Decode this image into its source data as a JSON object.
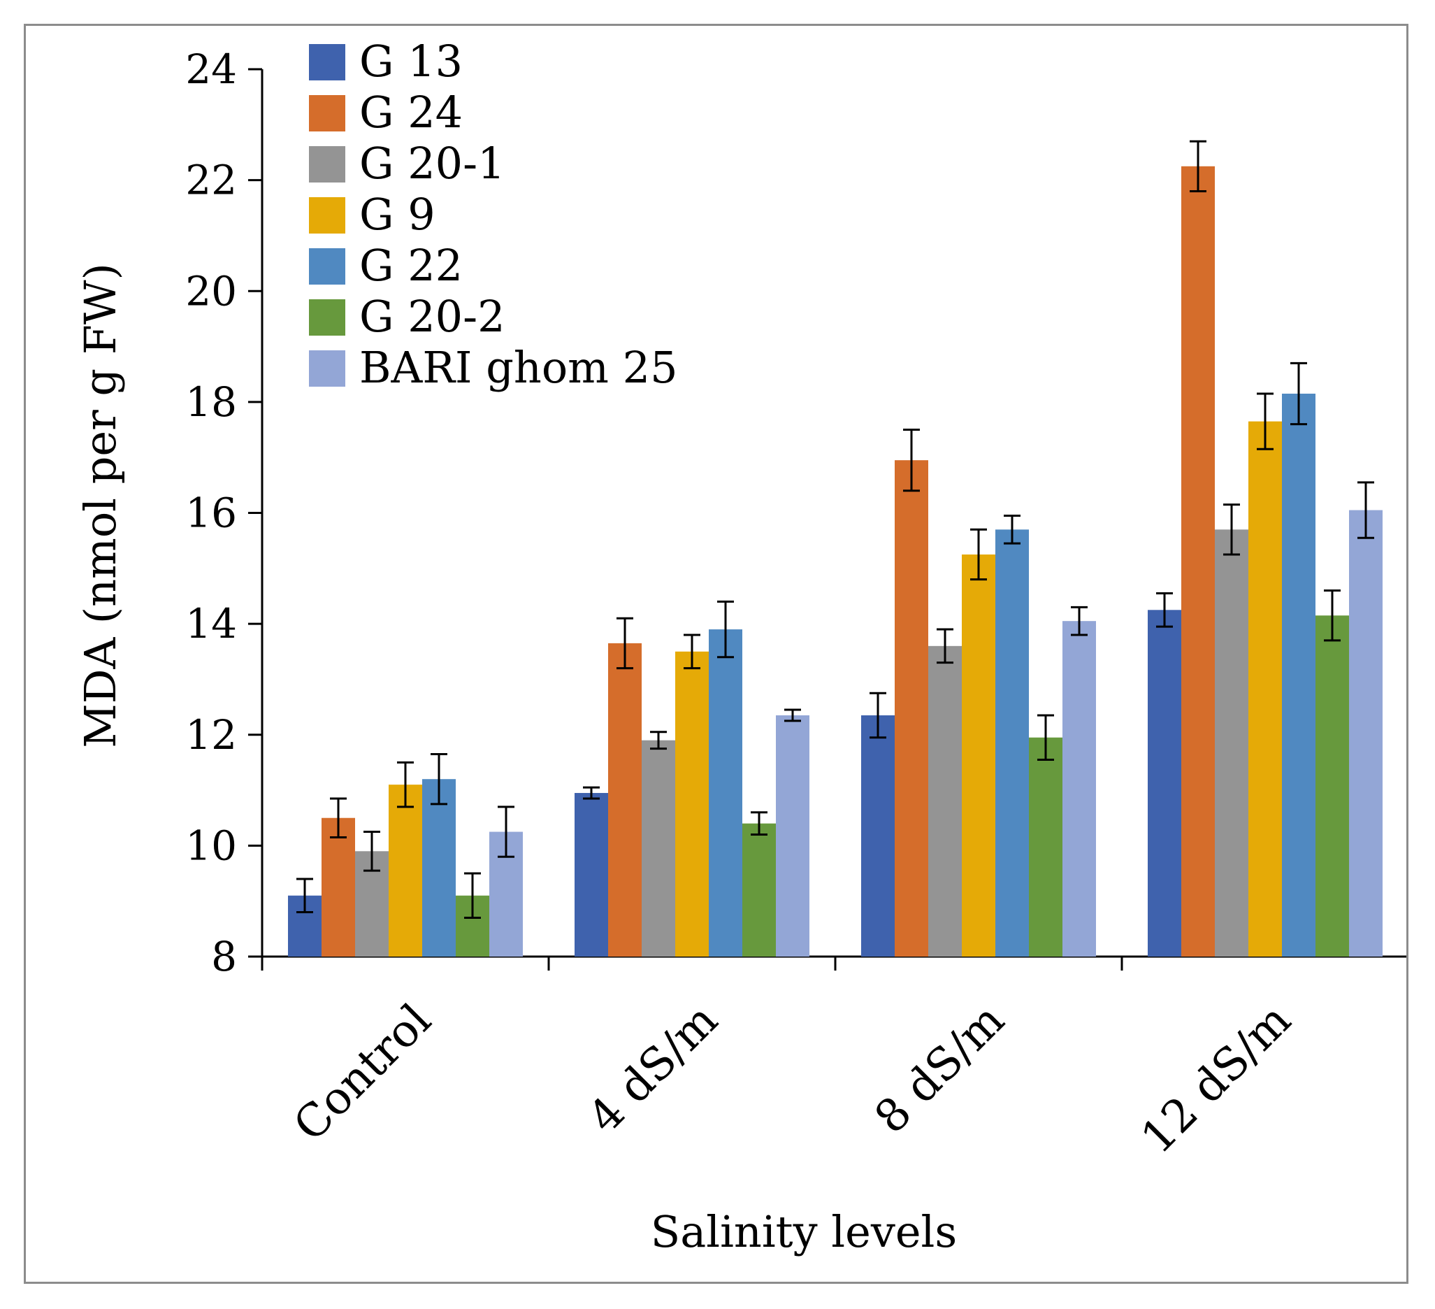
{
  "chart_data": {
    "type": "bar",
    "title": "",
    "xlabel": "Salinity levels",
    "ylabel": "MDA (nmol per g FW)",
    "ylim": [
      8,
      24
    ],
    "yticks": [
      "8",
      "10",
      "12",
      "14",
      "16",
      "18",
      "20",
      "22",
      "24"
    ],
    "grid": false,
    "legend_position": "top-left",
    "categories": [
      "Control",
      "4 dS/m",
      "8 dS/m",
      "12 dS/m"
    ],
    "series": [
      {
        "name": "G 13",
        "color": "#3f62ad",
        "values": [
          9.1,
          10.95,
          12.35,
          14.25
        ],
        "errors": [
          0.3,
          0.1,
          0.4,
          0.3
        ]
      },
      {
        "name": "G 24",
        "color": "#d56d2b",
        "values": [
          10.5,
          13.65,
          16.95,
          22.25
        ],
        "errors": [
          0.35,
          0.45,
          0.55,
          0.45
        ]
      },
      {
        "name": "G 20-1",
        "color": "#949494",
        "values": [
          9.9,
          11.9,
          13.6,
          15.7
        ],
        "errors": [
          0.35,
          0.15,
          0.3,
          0.45
        ]
      },
      {
        "name": "G 9",
        "color": "#e5aa07",
        "values": [
          11.1,
          13.5,
          15.25,
          17.65
        ],
        "errors": [
          0.4,
          0.3,
          0.45,
          0.5
        ]
      },
      {
        "name": "G 22",
        "color": "#5089c1",
        "values": [
          11.2,
          13.9,
          15.7,
          18.15
        ],
        "errors": [
          0.45,
          0.5,
          0.25,
          0.55
        ]
      },
      {
        "name": "G 20-2",
        "color": "#67993d",
        "values": [
          9.1,
          10.4,
          11.95,
          14.15
        ],
        "errors": [
          0.4,
          0.2,
          0.4,
          0.45
        ]
      },
      {
        "name": "BARI ghom 25",
        "color": "#93a6d6",
        "values": [
          10.25,
          12.35,
          14.05,
          16.05
        ],
        "errors": [
          0.45,
          0.1,
          0.25,
          0.5
        ]
      }
    ]
  }
}
